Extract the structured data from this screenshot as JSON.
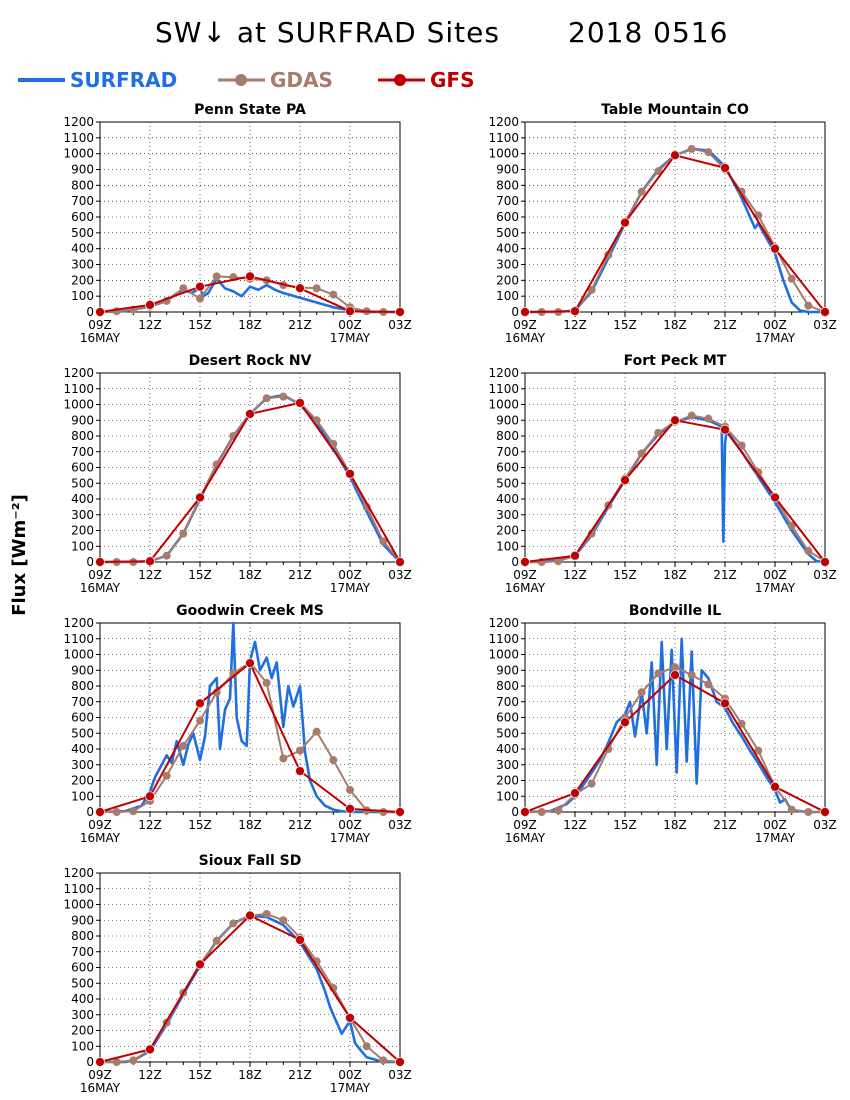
{
  "title": "SW↓ at SURFRAD Sites",
  "date": "2018 0516",
  "ylabel": "Flux [Wm⁻²]",
  "colors": {
    "SURFRAD": "#1f6fe0",
    "GDAS": "#a87c6c",
    "GFS": "#c00000"
  },
  "legend": [
    "SURFRAD",
    "GDAS",
    "GFS"
  ],
  "chart_data": [
    {
      "type": "line",
      "title": "Penn State PA",
      "x_ticks": [
        "09Z",
        "12Z",
        "15Z",
        "18Z",
        "21Z",
        "00Z",
        "03Z"
      ],
      "x_sublabels": [
        "16MAY",
        "",
        "",
        "",
        "",
        "17MAY",
        ""
      ],
      "xlim": [
        9,
        27
      ],
      "ylim": [
        0,
        1200
      ],
      "yticks": [
        0,
        100,
        200,
        300,
        400,
        500,
        600,
        700,
        800,
        900,
        1000,
        1100,
        1200
      ],
      "series": [
        {
          "name": "SURFRAD",
          "x": [
            9,
            10.5,
            11,
            12,
            13,
            13.5,
            14,
            14.5,
            15,
            15.2,
            15.5,
            16,
            16.5,
            17,
            17.5,
            18,
            18.5,
            19,
            19.5,
            20,
            21,
            22,
            23,
            24,
            25,
            26,
            27
          ],
          "values": [
            0,
            5,
            15,
            35,
            70,
            110,
            140,
            120,
            150,
            100,
            120,
            210,
            150,
            130,
            100,
            160,
            140,
            170,
            140,
            120,
            90,
            60,
            30,
            10,
            0,
            0,
            0
          ]
        },
        {
          "name": "GDAS",
          "x": [
            9,
            10,
            11,
            12,
            13,
            14,
            15,
            16,
            17,
            18,
            19,
            20,
            21,
            22,
            23,
            24,
            25,
            26,
            27
          ],
          "values": [
            0,
            5,
            15,
            35,
            70,
            150,
            85,
            225,
            220,
            210,
            200,
            170,
            155,
            150,
            110,
            30,
            5,
            0,
            0
          ]
        },
        {
          "name": "GFS",
          "x": [
            9,
            12,
            15,
            18,
            21,
            24,
            27
          ],
          "values": [
            0,
            45,
            160,
            225,
            150,
            5,
            0
          ]
        }
      ]
    },
    {
      "type": "line",
      "title": "Table Mountain CO",
      "x_ticks": [
        "09Z",
        "12Z",
        "15Z",
        "18Z",
        "21Z",
        "00Z",
        "03Z"
      ],
      "x_sublabels": [
        "16MAY",
        "",
        "",
        "",
        "",
        "17MAY",
        ""
      ],
      "xlim": [
        9,
        27
      ],
      "ylim": [
        0,
        1200
      ],
      "yticks": [
        0,
        100,
        200,
        300,
        400,
        500,
        600,
        700,
        800,
        900,
        1000,
        1100,
        1200
      ],
      "series": [
        {
          "name": "SURFRAD",
          "x": [
            9,
            11,
            12,
            13,
            14,
            15,
            16,
            17,
            18,
            19,
            20,
            21,
            22,
            22.5,
            22.8,
            23,
            24,
            24.5,
            25,
            25.5,
            26,
            27
          ],
          "values": [
            0,
            0,
            10,
            130,
            340,
            560,
            760,
            900,
            990,
            1030,
            1020,
            920,
            720,
            600,
            530,
            560,
            370,
            200,
            60,
            10,
            0,
            0
          ]
        },
        {
          "name": "GDAS",
          "x": [
            9,
            10,
            11,
            12,
            13,
            14,
            15,
            16,
            17,
            18,
            19,
            20,
            21,
            22,
            23,
            24,
            25,
            26,
            27
          ],
          "values": [
            0,
            0,
            0,
            10,
            140,
            360,
            570,
            760,
            890,
            990,
            1030,
            1010,
            900,
            760,
            610,
            410,
            210,
            40,
            0
          ]
        },
        {
          "name": "GFS",
          "x": [
            9,
            12,
            15,
            18,
            21,
            24,
            27
          ],
          "values": [
            0,
            5,
            565,
            990,
            910,
            400,
            0
          ]
        }
      ]
    },
    {
      "type": "line",
      "title": "Desert Rock NV",
      "x_ticks": [
        "09Z",
        "12Z",
        "15Z",
        "18Z",
        "21Z",
        "00Z",
        "03Z"
      ],
      "x_sublabels": [
        "16MAY",
        "",
        "",
        "",
        "",
        "17MAY",
        ""
      ],
      "xlim": [
        9,
        27
      ],
      "ylim": [
        0,
        1200
      ],
      "yticks": [
        0,
        100,
        200,
        300,
        400,
        500,
        600,
        700,
        800,
        900,
        1000,
        1100,
        1200
      ],
      "series": [
        {
          "name": "SURFRAD",
          "x": [
            9,
            11,
            12,
            13,
            14,
            15,
            16,
            17,
            18,
            19,
            20,
            21,
            22,
            23,
            24,
            25,
            26,
            27
          ],
          "values": [
            0,
            0,
            5,
            40,
            180,
            400,
            620,
            800,
            940,
            1040,
            1060,
            1000,
            880,
            720,
            540,
            320,
            110,
            0
          ]
        },
        {
          "name": "GDAS",
          "x": [
            9,
            10,
            11,
            12,
            13,
            14,
            15,
            16,
            17,
            18,
            19,
            20,
            21,
            22,
            23,
            24,
            25,
            26,
            27
          ],
          "values": [
            0,
            0,
            0,
            5,
            40,
            180,
            410,
            620,
            800,
            940,
            1040,
            1050,
            1010,
            900,
            750,
            560,
            350,
            130,
            5
          ]
        },
        {
          "name": "GFS",
          "x": [
            9,
            12,
            15,
            18,
            21,
            24,
            27
          ],
          "values": [
            0,
            5,
            410,
            940,
            1010,
            560,
            0
          ]
        }
      ]
    },
    {
      "type": "line",
      "title": "Fort Peck MT",
      "x_ticks": [
        "09Z",
        "12Z",
        "15Z",
        "18Z",
        "21Z",
        "00Z",
        "03Z"
      ],
      "x_sublabels": [
        "16MAY",
        "",
        "",
        "",
        "",
        "17MAY",
        ""
      ],
      "xlim": [
        9,
        27
      ],
      "ylim": [
        0,
        1200
      ],
      "yticks": [
        0,
        100,
        200,
        300,
        400,
        500,
        600,
        700,
        800,
        900,
        1000,
        1100,
        1200
      ],
      "series": [
        {
          "name": "SURFRAD",
          "x": [
            9,
            10,
            11,
            12,
            13,
            14,
            15,
            16,
            17,
            18,
            19,
            20,
            20.8,
            20.9,
            21,
            21.1,
            21.2,
            22,
            23,
            24,
            25,
            26,
            26.5,
            27
          ],
          "values": [
            0,
            0,
            10,
            40,
            170,
            350,
            520,
            690,
            810,
            890,
            920,
            900,
            860,
            130,
            750,
            840,
            820,
            700,
            540,
            380,
            200,
            50,
            5,
            0
          ]
        },
        {
          "name": "GDAS",
          "x": [
            9,
            10,
            11,
            12,
            13,
            14,
            15,
            16,
            17,
            18,
            19,
            20,
            21,
            22,
            23,
            24,
            25,
            26,
            27
          ],
          "values": [
            0,
            0,
            5,
            40,
            180,
            360,
            530,
            690,
            820,
            890,
            930,
            910,
            860,
            740,
            570,
            410,
            230,
            70,
            5
          ]
        },
        {
          "name": "GFS",
          "x": [
            9,
            12,
            15,
            18,
            21,
            24,
            27
          ],
          "values": [
            0,
            40,
            520,
            900,
            840,
            410,
            0
          ]
        }
      ]
    },
    {
      "type": "line",
      "title": "Goodwin Creek MS",
      "x_ticks": [
        "09Z",
        "12Z",
        "15Z",
        "18Z",
        "21Z",
        "00Z",
        "03Z"
      ],
      "x_sublabels": [
        "16MAY",
        "",
        "",
        "",
        "",
        "17MAY",
        ""
      ],
      "xlim": [
        9,
        27
      ],
      "ylim": [
        0,
        1200
      ],
      "yticks": [
        0,
        100,
        200,
        300,
        400,
        500,
        600,
        700,
        800,
        900,
        1000,
        1100,
        1200
      ],
      "series": [
        {
          "name": "SURFRAD",
          "x": [
            9,
            10.5,
            11.5,
            12,
            12.3,
            12.6,
            13,
            13.3,
            13.6,
            14,
            14.3,
            14.6,
            15,
            15.3,
            15.6,
            16,
            16.2,
            16.5,
            16.8,
            17,
            17.2,
            17.5,
            17.8,
            18,
            18.3,
            18.6,
            19,
            19.3,
            19.6,
            20,
            20.3,
            20.6,
            21,
            21.3,
            21.6,
            22,
            22.5,
            23,
            23.5,
            24,
            25,
            26,
            27
          ],
          "values": [
            0,
            5,
            40,
            130,
            220,
            280,
            360,
            310,
            450,
            300,
            430,
            500,
            330,
            480,
            800,
            850,
            400,
            650,
            720,
            1200,
            600,
            450,
            420,
            960,
            1080,
            900,
            980,
            850,
            950,
            540,
            800,
            670,
            800,
            380,
            200,
            100,
            40,
            15,
            5,
            0,
            0,
            0,
            0
          ]
        },
        {
          "name": "GDAS",
          "x": [
            9,
            10,
            11,
            12,
            13,
            14,
            15,
            16,
            17,
            18,
            19,
            20,
            21,
            22,
            23,
            24,
            25,
            26,
            27
          ],
          "values": [
            0,
            0,
            5,
            70,
            230,
            420,
            580,
            760,
            880,
            950,
            820,
            340,
            390,
            510,
            330,
            140,
            10,
            0,
            0
          ]
        },
        {
          "name": "GFS",
          "x": [
            9,
            12,
            15,
            18,
            21,
            24,
            27
          ],
          "values": [
            0,
            100,
            690,
            945,
            260,
            20,
            0
          ]
        }
      ]
    },
    {
      "type": "line",
      "title": "Bondville IL",
      "x_ticks": [
        "09Z",
        "12Z",
        "15Z",
        "18Z",
        "21Z",
        "00Z",
        "03Z"
      ],
      "x_sublabels": [
        "16MAY",
        "",
        "",
        "",
        "",
        "17MAY",
        ""
      ],
      "xlim": [
        9,
        27
      ],
      "ylim": [
        0,
        1200
      ],
      "yticks": [
        0,
        100,
        200,
        300,
        400,
        500,
        600,
        700,
        800,
        900,
        1000,
        1100,
        1200
      ],
      "series": [
        {
          "name": "SURFRAD",
          "x": [
            9,
            10.5,
            11.5,
            12,
            12.5,
            13,
            13.5,
            14,
            14.5,
            15,
            15.3,
            15.6,
            16,
            16.3,
            16.6,
            16.9,
            17.2,
            17.5,
            17.8,
            18.1,
            18.4,
            18.7,
            19,
            19.3,
            19.6,
            20,
            20.5,
            21,
            21.5,
            22,
            22.5,
            23,
            23.5,
            24,
            24.3,
            24.6,
            25,
            26,
            27
          ],
          "values": [
            0,
            5,
            50,
            100,
            170,
            250,
            330,
            440,
            570,
            620,
            700,
            480,
            760,
            500,
            950,
            300,
            1080,
            400,
            1030,
            250,
            1100,
            320,
            1020,
            180,
            900,
            850,
            700,
            660,
            560,
            480,
            390,
            310,
            220,
            140,
            60,
            80,
            10,
            0,
            0
          ]
        },
        {
          "name": "GDAS",
          "x": [
            9,
            10,
            11,
            12,
            13,
            14,
            15,
            16,
            17,
            18,
            19,
            20,
            21,
            22,
            23,
            24,
            25,
            26,
            27
          ],
          "values": [
            0,
            0,
            10,
            110,
            180,
            400,
            600,
            760,
            880,
            920,
            870,
            810,
            720,
            560,
            390,
            160,
            15,
            0,
            0
          ]
        },
        {
          "name": "GFS",
          "x": [
            9,
            12,
            15,
            18,
            21,
            24,
            27
          ],
          "values": [
            0,
            120,
            570,
            870,
            690,
            160,
            0
          ]
        }
      ]
    },
    {
      "type": "line",
      "title": "Sioux Fall SD",
      "x_ticks": [
        "09Z",
        "12Z",
        "15Z",
        "18Z",
        "21Z",
        "00Z",
        "03Z"
      ],
      "x_sublabels": [
        "16MAY",
        "",
        "",
        "",
        "",
        "17MAY",
        ""
      ],
      "xlim": [
        9,
        27
      ],
      "ylim": [
        0,
        1200
      ],
      "yticks": [
        0,
        100,
        200,
        300,
        400,
        500,
        600,
        700,
        800,
        900,
        1000,
        1100,
        1200
      ],
      "series": [
        {
          "name": "SURFRAD",
          "x": [
            9,
            10.5,
            11,
            12,
            13,
            14,
            15,
            16,
            17,
            18,
            19,
            20,
            21,
            22,
            22.5,
            22.8,
            23,
            23.5,
            24,
            24.3,
            24.6,
            25,
            26,
            27
          ],
          "values": [
            0,
            0,
            10,
            70,
            240,
            430,
            610,
            770,
            880,
            930,
            920,
            870,
            760,
            590,
            450,
            350,
            300,
            180,
            260,
            120,
            80,
            30,
            0,
            0
          ]
        },
        {
          "name": "GDAS",
          "x": [
            9,
            10,
            11,
            12,
            13,
            14,
            15,
            16,
            17,
            18,
            19,
            20,
            21,
            22,
            23,
            24,
            25,
            26,
            27
          ],
          "values": [
            0,
            0,
            10,
            80,
            250,
            440,
            620,
            770,
            880,
            930,
            940,
            900,
            790,
            640,
            470,
            280,
            100,
            10,
            0
          ]
        },
        {
          "name": "GFS",
          "x": [
            9,
            12,
            15,
            18,
            21,
            24,
            27
          ],
          "values": [
            0,
            80,
            620,
            930,
            775,
            280,
            0
          ]
        }
      ]
    }
  ]
}
